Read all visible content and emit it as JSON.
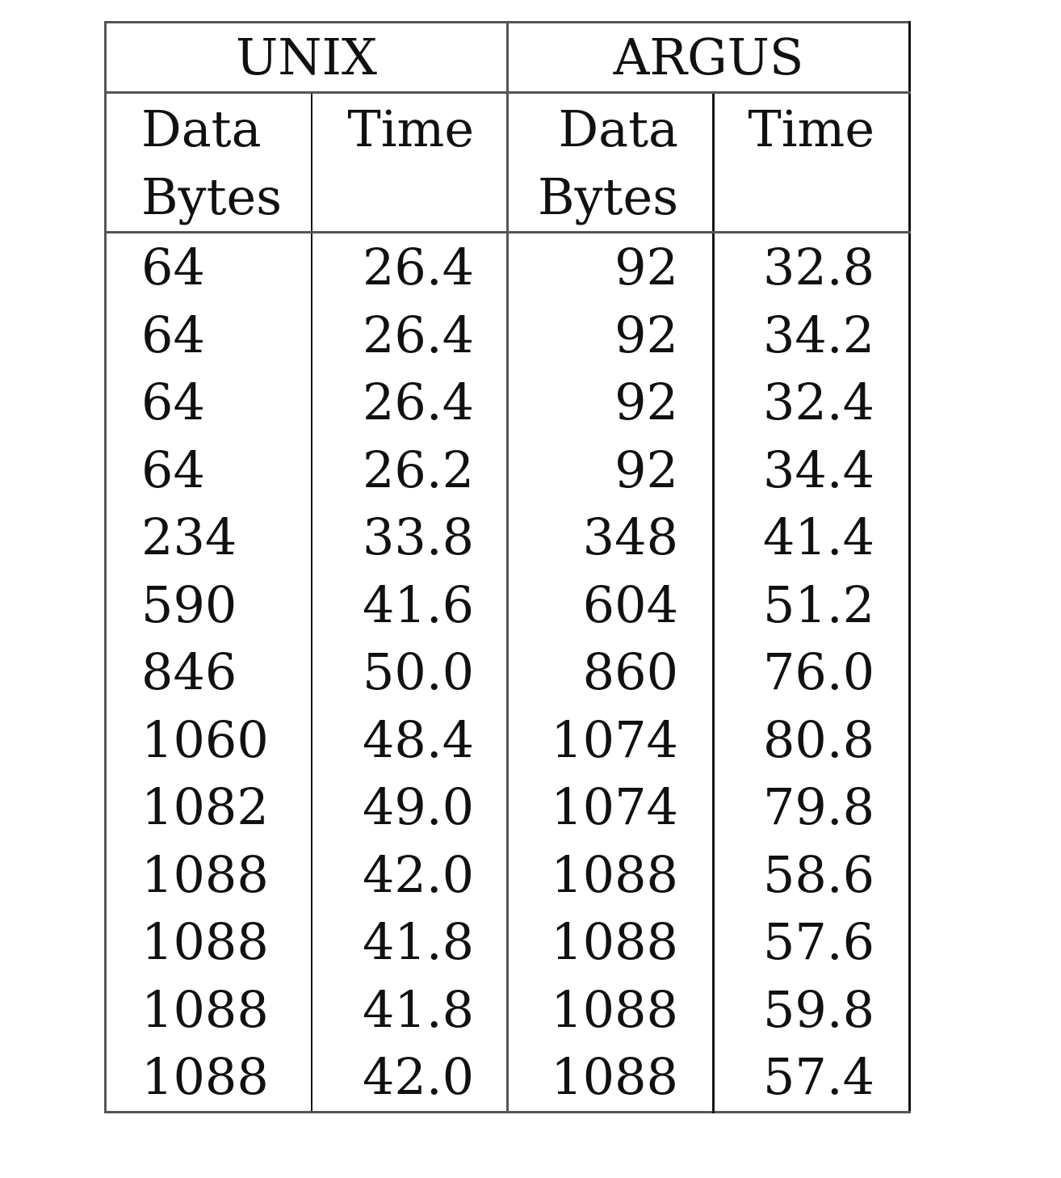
{
  "table": {
    "groups": [
      "UNIX",
      "ARGUS"
    ],
    "subheaders": [
      [
        "Data",
        "Bytes"
      ],
      [
        "Time"
      ],
      [
        "Data",
        "Bytes"
      ],
      [
        "Time"
      ]
    ],
    "rows": [
      [
        "64",
        "26.4",
        "92",
        "32.8"
      ],
      [
        "64",
        "26.4",
        "92",
        "34.2"
      ],
      [
        "64",
        "26.4",
        "92",
        "32.4"
      ],
      [
        "64",
        "26.2",
        "92",
        "34.4"
      ],
      [
        "234",
        "33.8",
        "348",
        "41.4"
      ],
      [
        "590",
        "41.6",
        "604",
        "51.2"
      ],
      [
        "846",
        "50.0",
        "860",
        "76.0"
      ],
      [
        "1060",
        "48.4",
        "1074",
        "80.8"
      ],
      [
        "1082",
        "49.0",
        "1074",
        "79.8"
      ],
      [
        "1088",
        "42.0",
        "1088",
        "58.6"
      ],
      [
        "1088",
        "41.8",
        "1088",
        "57.6"
      ],
      [
        "1088",
        "41.8",
        "1088",
        "59.8"
      ],
      [
        "1088",
        "42.0",
        "1088",
        "57.4"
      ]
    ]
  }
}
